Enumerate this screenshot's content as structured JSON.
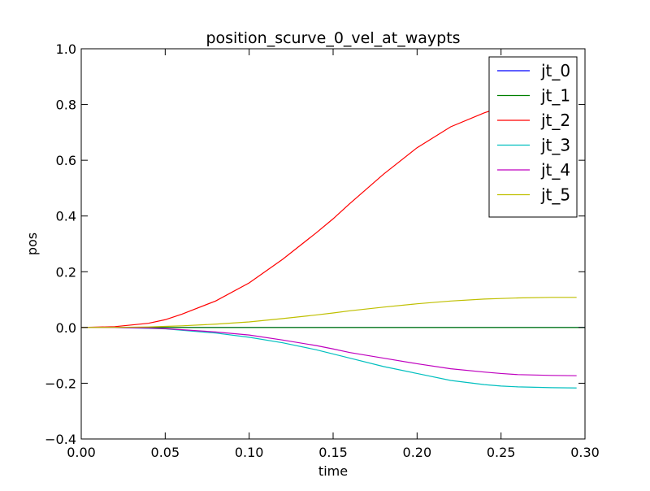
{
  "chart_data": {
    "type": "line",
    "title": "position_scurve_0_vel_at_waypts",
    "xlabel": "time",
    "ylabel": "pos",
    "xlim": [
      0.0,
      0.3
    ],
    "ylim": [
      -0.4,
      1.0
    ],
    "xticks": [
      0.0,
      0.05,
      0.1,
      0.15,
      0.2,
      0.25,
      0.3
    ],
    "xtick_labels": [
      "0.00",
      "0.05",
      "0.10",
      "0.15",
      "0.20",
      "0.25",
      "0.30"
    ],
    "yticks": [
      -0.4,
      -0.2,
      0.0,
      0.2,
      0.4,
      0.6,
      0.8,
      1.0
    ],
    "ytick_labels": [
      "−0.4",
      "−0.2",
      "0.0",
      "0.2",
      "0.4",
      "0.6",
      "0.8",
      "1.0"
    ],
    "grid": false,
    "legend_position": "top-right",
    "series": [
      {
        "name": "jt_0",
        "color": "#0000ff",
        "x": [
          0.0,
          0.3
        ],
        "y": [
          0.0,
          0.0
        ]
      },
      {
        "name": "jt_1",
        "color": "#008000",
        "x": [
          0.0,
          0.3
        ],
        "y": [
          0.0,
          0.0
        ]
      },
      {
        "name": "jt_2",
        "color": "#ff0000",
        "x": [
          0.0,
          0.02,
          0.04,
          0.05,
          0.06,
          0.08,
          0.1,
          0.12,
          0.14,
          0.15,
          0.16,
          0.18,
          0.2,
          0.22,
          0.24,
          0.25,
          0.26,
          0.28,
          0.295
        ],
        "y": [
          0.0,
          0.003,
          0.015,
          0.028,
          0.048,
          0.095,
          0.16,
          0.245,
          0.34,
          0.39,
          0.445,
          0.55,
          0.645,
          0.72,
          0.77,
          0.79,
          0.81,
          0.815,
          0.815
        ]
      },
      {
        "name": "jt_3",
        "color": "#00bfbf",
        "x": [
          0.0,
          0.02,
          0.04,
          0.05,
          0.06,
          0.08,
          0.1,
          0.12,
          0.14,
          0.15,
          0.16,
          0.18,
          0.2,
          0.22,
          0.24,
          0.25,
          0.26,
          0.28,
          0.295
        ],
        "y": [
          0.0,
          0.0,
          -0.003,
          -0.005,
          -0.01,
          -0.02,
          -0.035,
          -0.055,
          -0.08,
          -0.095,
          -0.11,
          -0.14,
          -0.165,
          -0.19,
          -0.205,
          -0.21,
          -0.213,
          -0.216,
          -0.217
        ]
      },
      {
        "name": "jt_4",
        "color": "#bf00bf",
        "x": [
          0.0,
          0.02,
          0.04,
          0.05,
          0.06,
          0.08,
          0.1,
          0.12,
          0.14,
          0.15,
          0.16,
          0.18,
          0.2,
          0.22,
          0.24,
          0.25,
          0.26,
          0.28,
          0.295
        ],
        "y": [
          0.0,
          0.0,
          -0.002,
          -0.004,
          -0.008,
          -0.016,
          -0.027,
          -0.045,
          -0.065,
          -0.077,
          -0.09,
          -0.11,
          -0.13,
          -0.148,
          -0.16,
          -0.165,
          -0.169,
          -0.172,
          -0.173
        ]
      },
      {
        "name": "jt_5",
        "color": "#bfbf00",
        "x": [
          0.0,
          0.02,
          0.04,
          0.05,
          0.06,
          0.08,
          0.1,
          0.12,
          0.14,
          0.15,
          0.16,
          0.18,
          0.2,
          0.22,
          0.24,
          0.25,
          0.26,
          0.28,
          0.295
        ],
        "y": [
          0.0,
          0.0005,
          0.002,
          0.004,
          0.006,
          0.012,
          0.02,
          0.032,
          0.045,
          0.052,
          0.06,
          0.073,
          0.085,
          0.095,
          0.102,
          0.104,
          0.106,
          0.108,
          0.108
        ]
      }
    ]
  }
}
